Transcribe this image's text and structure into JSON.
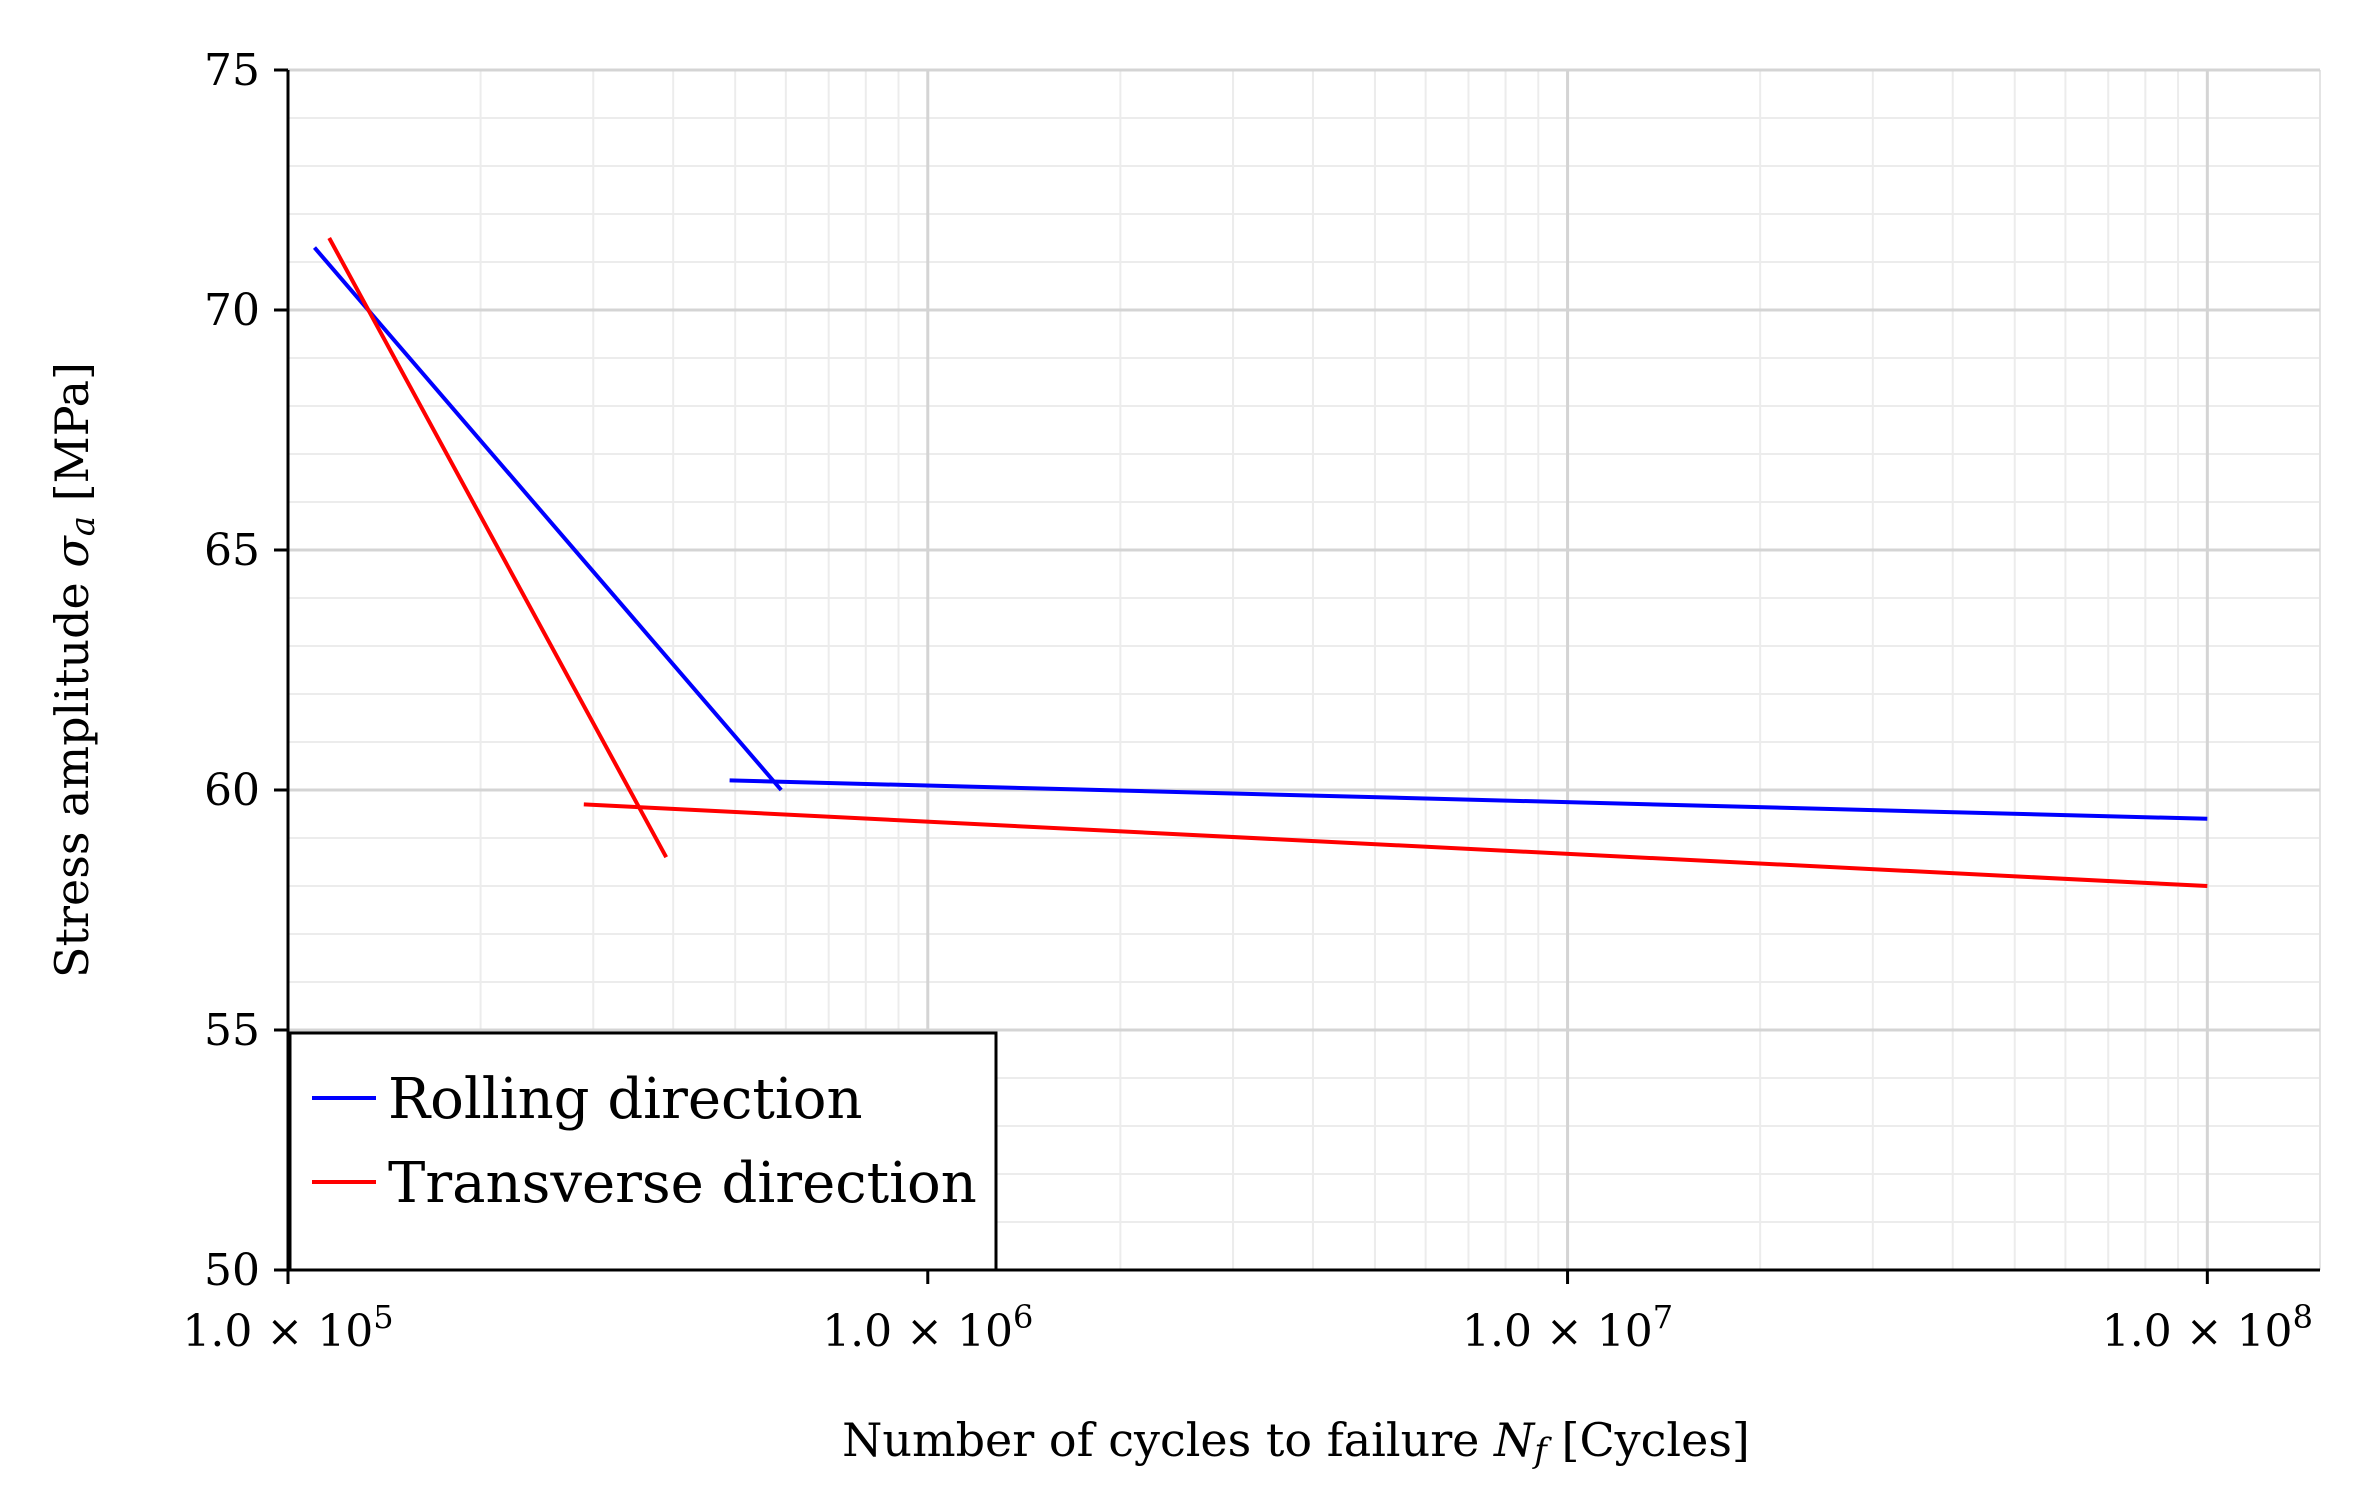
{
  "chart_data": {
    "type": "line",
    "title": "",
    "xlabel": {
      "prefix": "Number of cycles to failure ",
      "symbol": "N",
      "subscript": "f",
      "suffix": " [Cycles]"
    },
    "ylabel": {
      "prefix": "Stress amplitude ",
      "symbol": "σ",
      "subscript": "a",
      "suffix": " [MPa]"
    },
    "xscale": "log",
    "xlim": [
      100000,
      150000000
    ],
    "ylim": [
      50,
      75
    ],
    "xticks": [
      {
        "value": 100000,
        "label": "1.0 × 10",
        "exp": "5"
      },
      {
        "value": 1000000,
        "label": "1.0 × 10",
        "exp": "6"
      },
      {
        "value": 10000000,
        "label": "1.0 × 10",
        "exp": "7"
      },
      {
        "value": 100000000,
        "label": "1.0 × 10",
        "exp": "8"
      }
    ],
    "yticks": [
      50,
      55,
      60,
      65,
      70,
      75
    ],
    "grid": true,
    "legend_position": "bottom-left",
    "series": [
      {
        "name": "Rolling direction",
        "color": "#0000ff",
        "segments": [
          [
            [
              110000,
              71.3
            ],
            [
              590000,
              60.0
            ]
          ],
          [
            [
              490000,
              60.2
            ],
            [
              100000000,
              59.4
            ]
          ]
        ]
      },
      {
        "name": "Transverse direction",
        "color": "#ff0000",
        "segments": [
          [
            [
              116000,
              71.5
            ],
            [
              390000,
              58.6
            ]
          ],
          [
            [
              290000,
              59.7
            ],
            [
              100000000,
              58.0
            ]
          ]
        ]
      }
    ]
  }
}
